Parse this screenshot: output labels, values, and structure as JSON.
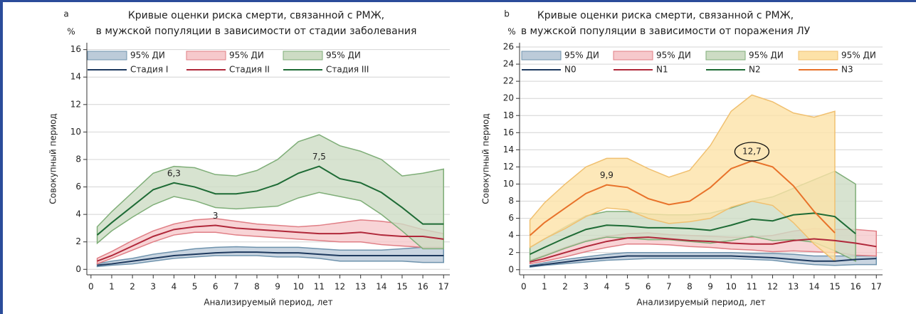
{
  "chart_data": [
    {
      "type": "line",
      "label": "a",
      "unit": "%",
      "title": [
        "Кривые оценки риска смерти, связанной с РМЖ,",
        "в мужской популяции в зависимости от стадии заболевания"
      ],
      "x_label": "Анализируемый период, лет",
      "y_label": "Совокупный период",
      "x": [
        0.3,
        1,
        2,
        3,
        4,
        5,
        6,
        7,
        8,
        9,
        10,
        11,
        12,
        13,
        14,
        15,
        16,
        17
      ],
      "xlim": [
        -0.2,
        17.3
      ],
      "xticks": [
        0,
        1,
        2,
        3,
        4,
        5,
        6,
        7,
        8,
        9,
        10,
        11,
        12,
        13,
        14,
        15,
        16,
        17
      ],
      "ylim": [
        -0.4,
        16.5
      ],
      "yticks": [
        0,
        2,
        4,
        6,
        8,
        10,
        12,
        14,
        16
      ],
      "grid": true,
      "bands": [
        {
          "name": "95% ДИ",
          "color": "#bccbd9",
          "edge_color": "#6f93ad",
          "upper": [
            0.4,
            0.6,
            0.8,
            1.1,
            1.3,
            1.5,
            1.6,
            1.65,
            1.6,
            1.6,
            1.6,
            1.5,
            1.4,
            1.4,
            1.4,
            1.5,
            1.6,
            1.6
          ],
          "lower": [
            0.2,
            0.3,
            0.4,
            0.6,
            0.8,
            0.9,
            1.0,
            1.0,
            1.0,
            0.9,
            0.9,
            0.8,
            0.6,
            0.6,
            0.6,
            0.6,
            0.5,
            0.5
          ]
        },
        {
          "name": "95% ДИ",
          "color": "#f6c9cc",
          "edge_color": "#e07e85",
          "upper": [
            0.8,
            1.3,
            2.1,
            2.8,
            3.3,
            3.6,
            3.7,
            3.5,
            3.3,
            3.2,
            3.1,
            3.2,
            3.4,
            3.6,
            3.5,
            3.3,
            2.9,
            2.6
          ],
          "lower": [
            0.4,
            0.8,
            1.4,
            2.0,
            2.5,
            2.7,
            2.7,
            2.5,
            2.4,
            2.3,
            2.2,
            2.1,
            2.0,
            2.0,
            1.8,
            1.7,
            1.6,
            1.6
          ]
        },
        {
          "name": "95% ДИ",
          "color": "#cddcc4",
          "edge_color": "#7fae78",
          "upper": [
            3.1,
            4.2,
            5.6,
            7.0,
            7.5,
            7.4,
            6.9,
            6.8,
            7.2,
            8.0,
            9.3,
            9.8,
            9.0,
            8.6,
            8.0,
            6.8,
            7.0,
            7.3
          ],
          "lower": [
            1.9,
            2.8,
            3.8,
            4.7,
            5.3,
            5.0,
            4.5,
            4.4,
            4.5,
            4.6,
            5.2,
            5.6,
            5.3,
            5.0,
            4.0,
            2.8,
            1.5,
            1.5
          ]
        }
      ],
      "series": [
        {
          "name": "Стадия I",
          "color": "#1e3a5f",
          "values": [
            0.3,
            0.4,
            0.6,
            0.8,
            1.0,
            1.1,
            1.2,
            1.25,
            1.25,
            1.2,
            1.2,
            1.1,
            1.0,
            1.0,
            1.0,
            1.0,
            1.0,
            1.0
          ]
        },
        {
          "name": "Стадия II",
          "color": "#b0283a",
          "values": [
            0.6,
            1.0,
            1.7,
            2.4,
            2.9,
            3.1,
            3.2,
            3.0,
            2.9,
            2.8,
            2.7,
            2.6,
            2.6,
            2.7,
            2.5,
            2.4,
            2.4,
            2.2
          ]
        },
        {
          "name": "Стадия III",
          "color": "#1e6b35",
          "values": [
            2.5,
            3.4,
            4.6,
            5.8,
            6.3,
            6.0,
            5.5,
            5.5,
            5.7,
            6.2,
            7.0,
            7.5,
            6.6,
            6.3,
            5.6,
            4.5,
            3.3,
            3.3
          ]
        }
      ],
      "annotations": [
        {
          "text": "6,3",
          "x": 4,
          "y": 6.3,
          "circled": false
        },
        {
          "text": "3",
          "x": 6,
          "y": 3.2,
          "circled": false
        },
        {
          "text": "7,5",
          "x": 11,
          "y": 7.5,
          "circled": false
        }
      ]
    },
    {
      "type": "line",
      "label": "b",
      "unit": "%",
      "title": [
        "Кривые оценки риска смерти, связанной с РМЖ,",
        "в мужской популяции в зависимости от поражения ЛУ"
      ],
      "x_label": "Анализируемый период, лет",
      "y_label": "Совокупный период",
      "x": [
        0.3,
        1,
        2,
        3,
        4,
        5,
        6,
        7,
        8,
        9,
        10,
        11,
        12,
        13,
        14,
        15,
        16,
        17
      ],
      "xlim": [
        -0.2,
        17.3
      ],
      "xticks": [
        0,
        1,
        2,
        3,
        4,
        5,
        6,
        7,
        8,
        9,
        10,
        11,
        12,
        13,
        14,
        15,
        16,
        17
      ],
      "ylim": [
        -0.6,
        26.5
      ],
      "yticks": [
        0,
        2,
        4,
        6,
        8,
        10,
        12,
        14,
        16,
        18,
        20,
        22,
        24,
        26
      ],
      "grid": true,
      "bands": [
        {
          "name": "95% ДИ",
          "color": "#bccbd9",
          "edge_color": "#6f93ad",
          "upper": [
            0.5,
            0.8,
            1.2,
            1.5,
            1.8,
            2.0,
            2.0,
            2.0,
            2.0,
            2.0,
            2.0,
            1.9,
            1.9,
            1.8,
            1.6,
            1.6,
            1.6,
            1.6
          ],
          "lower": [
            0.3,
            0.5,
            0.7,
            0.9,
            1.1,
            1.2,
            1.3,
            1.3,
            1.3,
            1.3,
            1.3,
            1.2,
            1.1,
            0.8,
            0.6,
            0.5,
            0.6,
            0.6
          ]
        },
        {
          "name": "95% ДИ",
          "color": "#f6c9cc",
          "edge_color": "#e07e85",
          "upper": [
            1.1,
            1.7,
            2.6,
            3.4,
            3.9,
            4.2,
            4.3,
            4.1,
            4.0,
            3.9,
            3.8,
            3.8,
            4.0,
            4.5,
            4.8,
            4.7,
            4.7,
            4.5
          ],
          "lower": [
            0.7,
            1.0,
            1.5,
            2.1,
            2.6,
            3.0,
            3.0,
            2.9,
            2.7,
            2.6,
            2.4,
            2.3,
            2.1,
            2.2,
            2.1,
            2.0,
            1.7,
            1.6
          ]
        },
        {
          "name": "95% ДИ",
          "color": "#cddcc4",
          "edge_color": "#7fae78",
          "upper": [
            2.6,
            3.6,
            5.0,
            6.3,
            6.8,
            6.8,
            6.5,
            6.4,
            6.4,
            6.6,
            7.2,
            8.0,
            8.5,
            9.5,
            10.5,
            11.5,
            10.0,
            null
          ],
          "lower": [
            1.0,
            1.6,
            2.5,
            3.3,
            3.8,
            3.7,
            3.5,
            3.5,
            3.3,
            3.1,
            3.4,
            3.9,
            3.4,
            3.5,
            3.2,
            2.2,
            1.0,
            null
          ]
        },
        {
          "name": "95% ДИ",
          "color": "#fde2a8",
          "edge_color": "#f0c070",
          "upper": [
            5.8,
            7.8,
            10.0,
            12.0,
            13.0,
            13.0,
            11.8,
            10.8,
            11.6,
            14.5,
            18.5,
            20.4,
            19.6,
            18.3,
            17.8,
            18.5,
            null,
            null
          ],
          "lower": [
            2.6,
            3.6,
            4.8,
            6.2,
            7.2,
            7.0,
            6.0,
            5.4,
            5.6,
            6.0,
            7.3,
            8.0,
            7.5,
            5.5,
            3.0,
            1.0,
            null,
            null
          ]
        }
      ],
      "series": [
        {
          "name": "N0",
          "color": "#1e3a5f",
          "values": [
            0.4,
            0.6,
            0.9,
            1.2,
            1.4,
            1.6,
            1.6,
            1.6,
            1.6,
            1.6,
            1.6,
            1.5,
            1.4,
            1.2,
            1.0,
            1.0,
            1.2,
            1.3
          ]
        },
        {
          "name": "N1",
          "color": "#b0283a",
          "values": [
            0.9,
            1.3,
            2.0,
            2.7,
            3.3,
            3.7,
            3.8,
            3.6,
            3.4,
            3.3,
            3.1,
            3.0,
            3.0,
            3.4,
            3.6,
            3.4,
            3.1,
            2.7
          ]
        },
        {
          "name": "N2",
          "color": "#1e6b35",
          "values": [
            1.8,
            2.6,
            3.7,
            4.7,
            5.2,
            5.1,
            4.9,
            4.9,
            4.8,
            4.6,
            5.2,
            5.9,
            5.7,
            6.4,
            6.6,
            6.2,
            4.2,
            null
          ]
        },
        {
          "name": "N3",
          "color": "#e8722a",
          "values": [
            4.0,
            5.5,
            7.2,
            8.9,
            9.9,
            9.6,
            8.3,
            7.6,
            8.0,
            9.6,
            11.8,
            12.7,
            12.0,
            9.8,
            6.8,
            4.3,
            null,
            null
          ]
        }
      ],
      "annotations": [
        {
          "text": "9,9",
          "x": 4,
          "y": 9.9,
          "circled": false
        },
        {
          "text": "12,7",
          "x": 11,
          "y": 12.7,
          "circled": true
        }
      ]
    }
  ]
}
